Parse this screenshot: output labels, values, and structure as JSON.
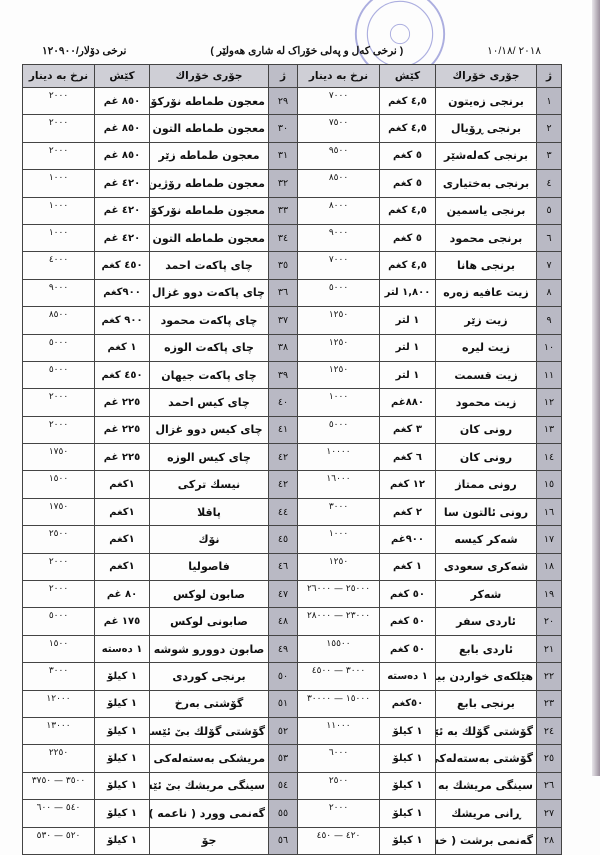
{
  "header": {
    "date": "٢٠١٨ /١٠/١٨",
    "title": "( نرخی کەل و پەلی خۆراک لە شاری هەولێر )",
    "dollar_rate": "نرخی دۆلار/١٢٠٩٠٠"
  },
  "table": {
    "columns": [
      "ژ",
      "جۆری خۆراك",
      "کێش",
      "نرخ بە دینار",
      "ژ",
      "جۆری خۆراك",
      "کێش",
      "نرخ بە دینار"
    ],
    "rows": [
      [
        [
          "١",
          "برنجی زەیتون",
          "٤,٥ کغم",
          "٧٠٠٠"
        ],
        [
          "٢٩",
          "معجون طماطە نۆرکۆن",
          "٨٥٠ غم",
          "٢٠٠٠"
        ]
      ],
      [
        [
          "٢",
          "برنجی ڕۆیال",
          "٤,٥ کغم",
          "٧٥٠٠"
        ],
        [
          "٣٠",
          "معجون طماطە التون سا",
          "٨٥٠ غم",
          "٢٠٠٠"
        ]
      ],
      [
        [
          "٣",
          "برنجی کەلەشێر",
          "٥ کغم",
          "٩٥٠٠"
        ],
        [
          "٣١",
          "معجون طماطه زێر",
          "٨٥٠ غم",
          "٢٠٠٠"
        ]
      ],
      [
        [
          "٤",
          "برنجی بەختیاری",
          "٥ کغم",
          "٨٥٠٠"
        ],
        [
          "٣٢",
          "معجون طماطە رۆژین",
          "٤٢٠ غم",
          "١٠٠٠"
        ]
      ],
      [
        [
          "٥",
          "برنجی  یاسمین",
          "٤,٥ کغم",
          "٨٠٠٠"
        ],
        [
          "٣٣",
          "معجون طماطە نۆرکۆن",
          "٤٢٠ غم",
          "١٠٠٠"
        ]
      ],
      [
        [
          "٦",
          "برنجی محمود",
          "٥ کغم",
          "٩٠٠٠"
        ],
        [
          "٣٤",
          "معجون طماطە التون سا",
          "٤٢٠ غم",
          "١٠٠٠"
        ]
      ],
      [
        [
          "٧",
          "برنجی هانا",
          "٤,٥ کغم",
          "٧٠٠٠"
        ],
        [
          "٣٥",
          "چای پاکەت احمد",
          "٤٥٠ کغم",
          "٤٠٠٠"
        ]
      ],
      [
        [
          "٨",
          "زیت عافیه زەرە",
          "١,٨٠٠ لتر",
          "٥٠٠٠"
        ],
        [
          "٣٦",
          "چای پاکەت دوو غزال",
          "٩٠٠کغم",
          "٩٠٠٠"
        ]
      ],
      [
        [
          "٩",
          "زیت زێر",
          "١ لتر",
          "١٢٥٠"
        ],
        [
          "٣٧",
          "چای پاکەت محمود",
          "٩٠٠ کغم",
          "٨٥٠٠"
        ]
      ],
      [
        [
          "١٠",
          "زیت لیره",
          "١ لتر",
          "١٢٥٠"
        ],
        [
          "٣٨",
          "چای پاکەت الوزە",
          "١ کغم",
          "٥٠٠٠"
        ]
      ],
      [
        [
          "١١",
          "زیت قسمت",
          "١ لتر",
          "١٢٥٠"
        ],
        [
          "٣٩",
          "چای پاکەت جیهان",
          "٤٥٠ کغم",
          "٥٠٠٠"
        ]
      ],
      [
        [
          "١٢",
          "زیت محمود",
          "٨٨٠غم",
          "١٠٠٠"
        ],
        [
          "٤٠",
          "چای کیس احمد",
          "٢٢٥ غم",
          "٢٠٠٠"
        ]
      ],
      [
        [
          "١٣",
          "رونی کان",
          "٣ کغم",
          "٥٠٠٠"
        ],
        [
          "٤١",
          "چای کیس دوو غزال",
          "٢٢٥ غم",
          "٢٠٠٠"
        ]
      ],
      [
        [
          "١٤",
          "رونی کان",
          "٦ کغم",
          "١٠٠٠٠"
        ],
        [
          "٤٢",
          "چای کیس الوزە",
          "٢٢٥ غم",
          "١٧٥٠"
        ]
      ],
      [
        [
          "١٥",
          "رونی ممتاز",
          "١٢ کغم",
          "١٦٠٠٠"
        ],
        [
          "٤٢",
          "نیسك تركی",
          "١کغم",
          "١٥٠٠"
        ]
      ],
      [
        [
          "١٦",
          "رونی ئالتون سا",
          "٢ کغم",
          "٣٠٠٠"
        ],
        [
          "٤٤",
          "پاقلا",
          "١کغم",
          "١٧٥٠"
        ]
      ],
      [
        [
          "١٧",
          "شەکر کیسە",
          "٩٠٠غم",
          "١٠٠٠"
        ],
        [
          "٤٥",
          "نۆك",
          "١کغم",
          "٢٥٠٠"
        ]
      ],
      [
        [
          "١٨",
          "شەکری سعودی",
          "١ کغم",
          "١٢٥٠"
        ],
        [
          "٤٦",
          "فاصولیا",
          "١کغم",
          "٢٠٠٠"
        ]
      ],
      [
        [
          "١٩",
          "شەکر",
          "٥٠ کغم",
          "٢٥٠٠٠ — ٢٦٠٠٠"
        ],
        [
          "٤٧",
          "صابون لوکس",
          "٨٠ غم",
          "٢٠٠٠"
        ]
      ],
      [
        [
          "٢٠",
          "ئاردی سفر",
          "٥٠ کغم",
          "٢٣٠٠٠ — ٢٨٠٠٠"
        ],
        [
          "٤٨",
          "صابونی لوکس",
          "١٧٥ غم",
          "٥٠٠٠"
        ]
      ],
      [
        [
          "٢١",
          "ئاردی بابع",
          "٥٠ کغم",
          "١٥٥٠٠"
        ],
        [
          "٤٩",
          "صابون دوورو شوشە",
          "١ دەستە",
          "١٥٠٠"
        ]
      ],
      [
        [
          "٢٢",
          "هێلکەی خواردن بیانی",
          "١ دەستە",
          "٣٠٠٠ — ٤٥٠٠"
        ],
        [
          "٥٠",
          "برنجی کوردی",
          "١ کیلۆ",
          "٣٠٠٠"
        ]
      ],
      [
        [
          "٢٣",
          "برنجی بابع",
          "٥٠کغم",
          "١٥٠٠٠ — ٣٠٠٠٠"
        ],
        [
          "٥١",
          "گۆشتی بەرخ",
          "١ کیلۆ",
          "١٢٠٠٠"
        ]
      ],
      [
        [
          "٢٤",
          "گۆشتی گۆلك بە ئێسك",
          "١ کیلۆ",
          "١١٠٠٠"
        ],
        [
          "٥٢",
          "گۆشتی گۆلك بێ ئێسك",
          "١ کیلۆ",
          "١٣٠٠٠"
        ]
      ],
      [
        [
          "٢٥",
          "گۆشتی بەستەلەکی بیانی",
          "١ کیلۆ",
          "٦٠٠٠"
        ],
        [
          "٥٣",
          "مریشکی بەستەلەکی تورکی",
          "١ کیلۆ",
          "٢٢٥٠"
        ]
      ],
      [
        [
          "٢٦",
          "سینگی مریشك بە ئێسك",
          "١ کیلۆ",
          "٢٥٠٠"
        ],
        [
          "٥٤",
          "سینگی مریشك بێ ئێسك",
          "١ کیلۆ",
          "٣٥٠٠ — ٣٧٥٠"
        ]
      ],
      [
        [
          "٢٧",
          "ڕانی مریشك",
          "١ کیلۆ",
          "٢٠٠٠"
        ],
        [
          "٥٥",
          "گەنمی وورد ( ناعمە )",
          "١ کیلۆ",
          "٥٤٠ — ٦٠٠"
        ]
      ],
      [
        [
          "٢٨",
          "گەنمی برشت ( خشنە )",
          "١ کیلۆ",
          "٤٢٠ — ٤٥٠"
        ],
        [
          "٥٦",
          "جۆ",
          "١ کیلۆ",
          "٥٢٠ — ٥٣٠"
        ]
      ]
    ]
  },
  "colors": {
    "header_bg": "#cfcfd6",
    "number_col_bg": "#b9b9c4",
    "stamp": "#6a6fc8"
  }
}
